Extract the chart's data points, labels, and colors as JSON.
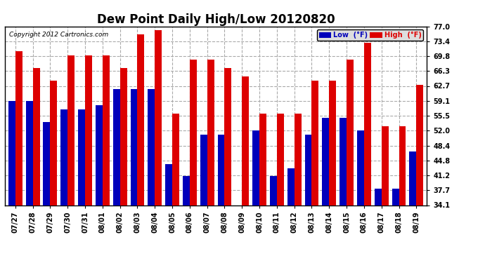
{
  "title": "Dew Point Daily High/Low 20120820",
  "copyright": "Copyright 2012 Cartronics.com",
  "dates": [
    "07/27",
    "07/28",
    "07/29",
    "07/30",
    "07/31",
    "08/01",
    "08/02",
    "08/03",
    "08/04",
    "08/05",
    "08/06",
    "08/07",
    "08/08",
    "08/09",
    "08/10",
    "08/11",
    "08/12",
    "08/13",
    "08/14",
    "08/15",
    "08/16",
    "08/17",
    "08/18",
    "08/19"
  ],
  "low": [
    59.0,
    59.0,
    54.0,
    57.0,
    57.0,
    58.0,
    62.0,
    62.0,
    62.0,
    44.0,
    41.0,
    51.0,
    51.0,
    34.1,
    52.0,
    41.0,
    43.0,
    51.0,
    55.0,
    55.0,
    52.0,
    38.0,
    38.0,
    47.0
  ],
  "high": [
    71.0,
    67.0,
    64.0,
    70.0,
    70.0,
    70.0,
    67.0,
    75.0,
    76.0,
    56.0,
    69.0,
    69.0,
    67.0,
    65.0,
    56.0,
    56.0,
    56.0,
    64.0,
    64.0,
    69.0,
    73.0,
    53.0,
    53.0,
    63.0
  ],
  "ylim_min": 34.1,
  "ylim_max": 77.0,
  "yticks": [
    34.1,
    37.7,
    41.2,
    44.8,
    48.4,
    52.0,
    55.5,
    59.1,
    62.7,
    66.3,
    69.8,
    73.4,
    77.0
  ],
  "bar_width": 0.4,
  "low_color": "#0000bb",
  "high_color": "#dd0000",
  "bg_color": "#ffffff",
  "grid_color": "#aaaaaa",
  "title_fontsize": 12,
  "tick_fontsize": 7,
  "copyright_fontsize": 6.5,
  "legend_low_label": "Low  (°F)",
  "legend_high_label": "High  (°F)"
}
